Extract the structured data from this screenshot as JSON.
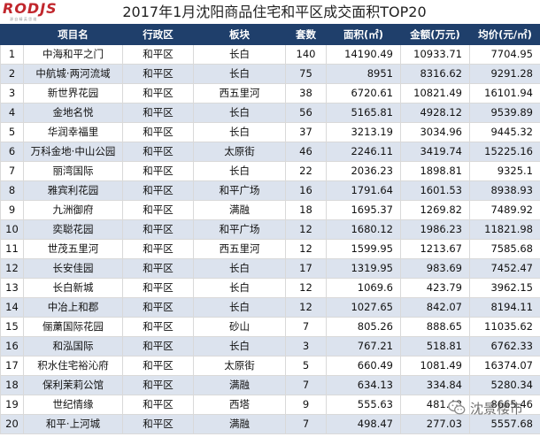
{
  "logo": {
    "text": "RODJS",
    "subtext": "源 自 精 英 思 维"
  },
  "title": "2017年1月沈阳商品住宅和平区成交面积TOP20",
  "columns": [
    "",
    "项目名",
    "行政区",
    "板块",
    "套数",
    "面积(㎡)",
    "金额(万元)",
    "均价(元/㎡)"
  ],
  "rows": [
    {
      "rank": "1",
      "name": "中海和平之门",
      "district": "和平区",
      "block": "长白",
      "units": "140",
      "area": "14190.49",
      "amount": "10933.71",
      "price": "7704.95"
    },
    {
      "rank": "2",
      "name": "中航城·两河流域",
      "district": "和平区",
      "block": "长白",
      "units": "75",
      "area": "8951",
      "amount": "8316.62",
      "price": "9291.28"
    },
    {
      "rank": "3",
      "name": "新世界花园",
      "district": "和平区",
      "block": "西五里河",
      "units": "38",
      "area": "6720.61",
      "amount": "10821.49",
      "price": "16101.94"
    },
    {
      "rank": "4",
      "name": "金地名悦",
      "district": "和平区",
      "block": "长白",
      "units": "56",
      "area": "5165.81",
      "amount": "4928.12",
      "price": "9539.89"
    },
    {
      "rank": "5",
      "name": "华润幸福里",
      "district": "和平区",
      "block": "长白",
      "units": "37",
      "area": "3213.19",
      "amount": "3034.96",
      "price": "9445.32"
    },
    {
      "rank": "6",
      "name": "万科金地·中山公园",
      "district": "和平区",
      "block": "太原街",
      "units": "46",
      "area": "2246.11",
      "amount": "3419.74",
      "price": "15225.16"
    },
    {
      "rank": "7",
      "name": "丽湾国际",
      "district": "和平区",
      "block": "长白",
      "units": "22",
      "area": "2036.23",
      "amount": "1898.81",
      "price": "9325.1"
    },
    {
      "rank": "8",
      "name": "雅宾利花园",
      "district": "和平区",
      "block": "和平广场",
      "units": "16",
      "area": "1791.64",
      "amount": "1601.53",
      "price": "8938.93"
    },
    {
      "rank": "9",
      "name": "九洲御府",
      "district": "和平区",
      "block": "满融",
      "units": "18",
      "area": "1695.37",
      "amount": "1269.82",
      "price": "7489.92"
    },
    {
      "rank": "10",
      "name": "奕聪花园",
      "district": "和平区",
      "block": "和平广场",
      "units": "12",
      "area": "1680.12",
      "amount": "1986.23",
      "price": "11821.98"
    },
    {
      "rank": "11",
      "name": "世茂五里河",
      "district": "和平区",
      "block": "西五里河",
      "units": "12",
      "area": "1599.95",
      "amount": "1213.67",
      "price": "7585.68"
    },
    {
      "rank": "12",
      "name": "长安佳园",
      "district": "和平区",
      "block": "长白",
      "units": "17",
      "area": "1319.95",
      "amount": "983.69",
      "price": "7452.47"
    },
    {
      "rank": "13",
      "name": "长白新城",
      "district": "和平区",
      "block": "长白",
      "units": "12",
      "area": "1069.6",
      "amount": "423.79",
      "price": "3962.15"
    },
    {
      "rank": "14",
      "name": "中冶上和郡",
      "district": "和平区",
      "block": "长白",
      "units": "12",
      "area": "1027.65",
      "amount": "842.07",
      "price": "8194.11"
    },
    {
      "rank": "15",
      "name": "俪䔥国际花园",
      "district": "和平区",
      "block": "砂山",
      "units": "7",
      "area": "805.26",
      "amount": "888.65",
      "price": "11035.62"
    },
    {
      "rank": "16",
      "name": "和泓国际",
      "district": "和平区",
      "block": "长白",
      "units": "3",
      "area": "767.21",
      "amount": "518.81",
      "price": "6762.33"
    },
    {
      "rank": "17",
      "name": "积水住宅裕沁府",
      "district": "和平区",
      "block": "太原街",
      "units": "5",
      "area": "660.49",
      "amount": "1081.49",
      "price": "16374.07"
    },
    {
      "rank": "18",
      "name": "保利茉莉公馆",
      "district": "和平区",
      "block": "满融",
      "units": "7",
      "area": "634.13",
      "amount": "334.84",
      "price": "5280.34"
    },
    {
      "rank": "19",
      "name": "世纪情缘",
      "district": "和平区",
      "block": "西塔",
      "units": "9",
      "area": "555.63",
      "amount": "481.48",
      "price": "8665.46"
    },
    {
      "rank": "20",
      "name": "和平·上河城",
      "district": "和平区",
      "block": "满融",
      "units": "7",
      "area": "498.47",
      "amount": "277.03",
      "price": "5557.68"
    }
  ],
  "watermark": {
    "text": "沈景楼市",
    "icon": "wechat-icon"
  },
  "colors": {
    "header_bg": "#1f3f6b",
    "alt_row": "#dce3ee",
    "logo_red": "#c1272d"
  }
}
